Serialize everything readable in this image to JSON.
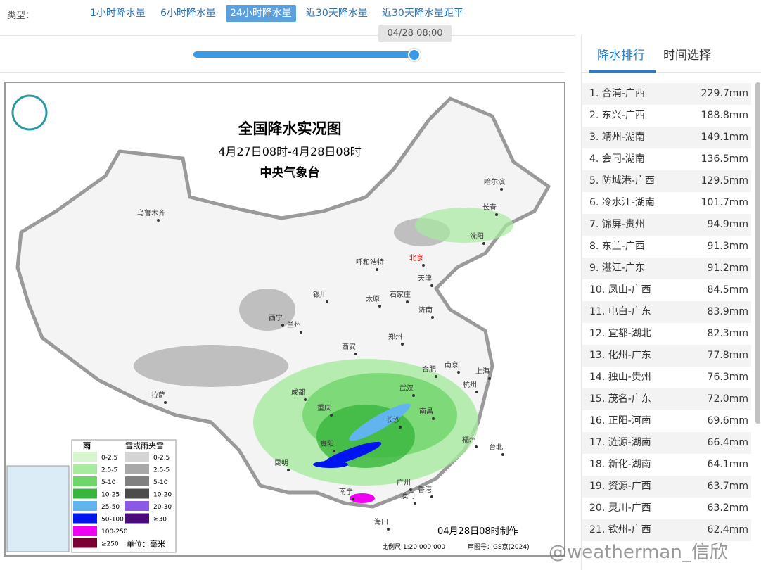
{
  "filter": {
    "label": "类型：",
    "tabs": [
      "1小时降水量",
      "6小时降水量",
      "24小时降水量",
      "近30天降水量",
      "近30天降水量距平"
    ],
    "active": 2
  },
  "slider": {
    "tooltip": "04/28 08:00"
  },
  "map": {
    "title": "全国降水实况图",
    "period": "4月27日08时-4月28日08时",
    "issuer": "中央气象台",
    "cities": [
      [
        "乌鲁木齐",
        215,
        306
      ],
      [
        "哈尔滨",
        703,
        262
      ],
      [
        "长春",
        696,
        298
      ],
      [
        "沈阳",
        678,
        339
      ],
      [
        "北京",
        592,
        370
      ],
      [
        "呼和浩特",
        526,
        376
      ],
      [
        "天津",
        604,
        399
      ],
      [
        "银川",
        455,
        422
      ],
      [
        "石家庄",
        569,
        422
      ],
      [
        "太原",
        530,
        428
      ],
      [
        "济南",
        605,
        444
      ],
      [
        "西宁",
        392,
        455
      ],
      [
        "兰州",
        418,
        465
      ],
      [
        "西安",
        496,
        496
      ],
      [
        "郑州",
        562,
        482
      ],
      [
        "南京",
        642,
        522
      ],
      [
        "合肥",
        610,
        528
      ],
      [
        "上海",
        686,
        531
      ],
      [
        "杭州",
        668,
        550
      ],
      [
        "武汉",
        578,
        555
      ],
      [
        "成都",
        424,
        561
      ],
      [
        "重庆",
        461,
        583
      ],
      [
        "拉萨",
        225,
        565
      ],
      [
        "长沙",
        559,
        600
      ],
      [
        "南昌",
        606,
        588
      ],
      [
        "福州",
        667,
        628
      ],
      [
        "贵阳",
        465,
        634
      ],
      [
        "昆明",
        400,
        661
      ],
      [
        "台北",
        705,
        639
      ],
      [
        "广州",
        574,
        689
      ],
      [
        "南宁",
        492,
        702
      ],
      [
        "澳门",
        580,
        708
      ],
      [
        "香港",
        604,
        699
      ],
      [
        "海口",
        542,
        745
      ]
    ],
    "rain_legend": {
      "title": "雨",
      "items": [
        [
          "0-2.5",
          "#d7f5cf"
        ],
        [
          "2.5-5",
          "#a8eaa0"
        ],
        [
          "5-10",
          "#6fd66c"
        ],
        [
          "10-25",
          "#38b53c"
        ],
        [
          "25-50",
          "#62b4ee"
        ],
        [
          "50-100",
          "#0014f0"
        ],
        [
          "100-250",
          "#f000f0"
        ],
        [
          "≥250",
          "#7a0033"
        ]
      ]
    },
    "snow_legend": {
      "title": "雪或雨夹雪",
      "items": [
        [
          "0-2.5",
          "#d4d4d4"
        ],
        [
          "2.5-5",
          "#a8a8a8"
        ],
        [
          "5-10",
          "#808080"
        ],
        [
          "10-20",
          "#4c4c4c"
        ],
        [
          "20-30",
          "#8a5ae6"
        ],
        [
          "≥30",
          "#4a0a7a"
        ]
      ]
    },
    "unit": "单位：毫米",
    "made": "04月28日08时制作",
    "scale": "比例尺 1:20 000 000",
    "approval": "审图号：GS京(2024)"
  },
  "side": {
    "tabs": [
      "降水排行",
      "时间选择"
    ],
    "rows": [
      [
        "1. 合浦-广西",
        "229.7mm"
      ],
      [
        "2. 东兴-广西",
        "188.8mm"
      ],
      [
        "3. 靖州-湖南",
        "149.1mm"
      ],
      [
        "4. 会同-湖南",
        "136.5mm"
      ],
      [
        "5. 防城港-广西",
        "129.5mm"
      ],
      [
        "6. 冷水江-湖南",
        "101.7mm"
      ],
      [
        "7. 锦屏-贵州",
        "94.9mm"
      ],
      [
        "8. 东兰-广西",
        "91.3mm"
      ],
      [
        "9. 湛江-广东",
        "91.2mm"
      ],
      [
        "10. 凤山-广西",
        "84.5mm"
      ],
      [
        "11. 电白-广东",
        "83.9mm"
      ],
      [
        "12. 宜都-湖北",
        "82.3mm"
      ],
      [
        "13. 化州-广东",
        "77.8mm"
      ],
      [
        "14. 独山-贵州",
        "76.3mm"
      ],
      [
        "15. 茂名-广东",
        "72.0mm"
      ],
      [
        "16. 正阳-河南",
        "69.6mm"
      ],
      [
        "17. 涟源-湖南",
        "66.4mm"
      ],
      [
        "18. 新化-湖南",
        "64.1mm"
      ],
      [
        "19. 资源-广西",
        "63.7mm"
      ],
      [
        "20. 灵川-广西",
        "63.2mm"
      ],
      [
        "21. 钦州-广西",
        "62.4mm"
      ]
    ]
  },
  "watermark": "@weatherman_信欣"
}
